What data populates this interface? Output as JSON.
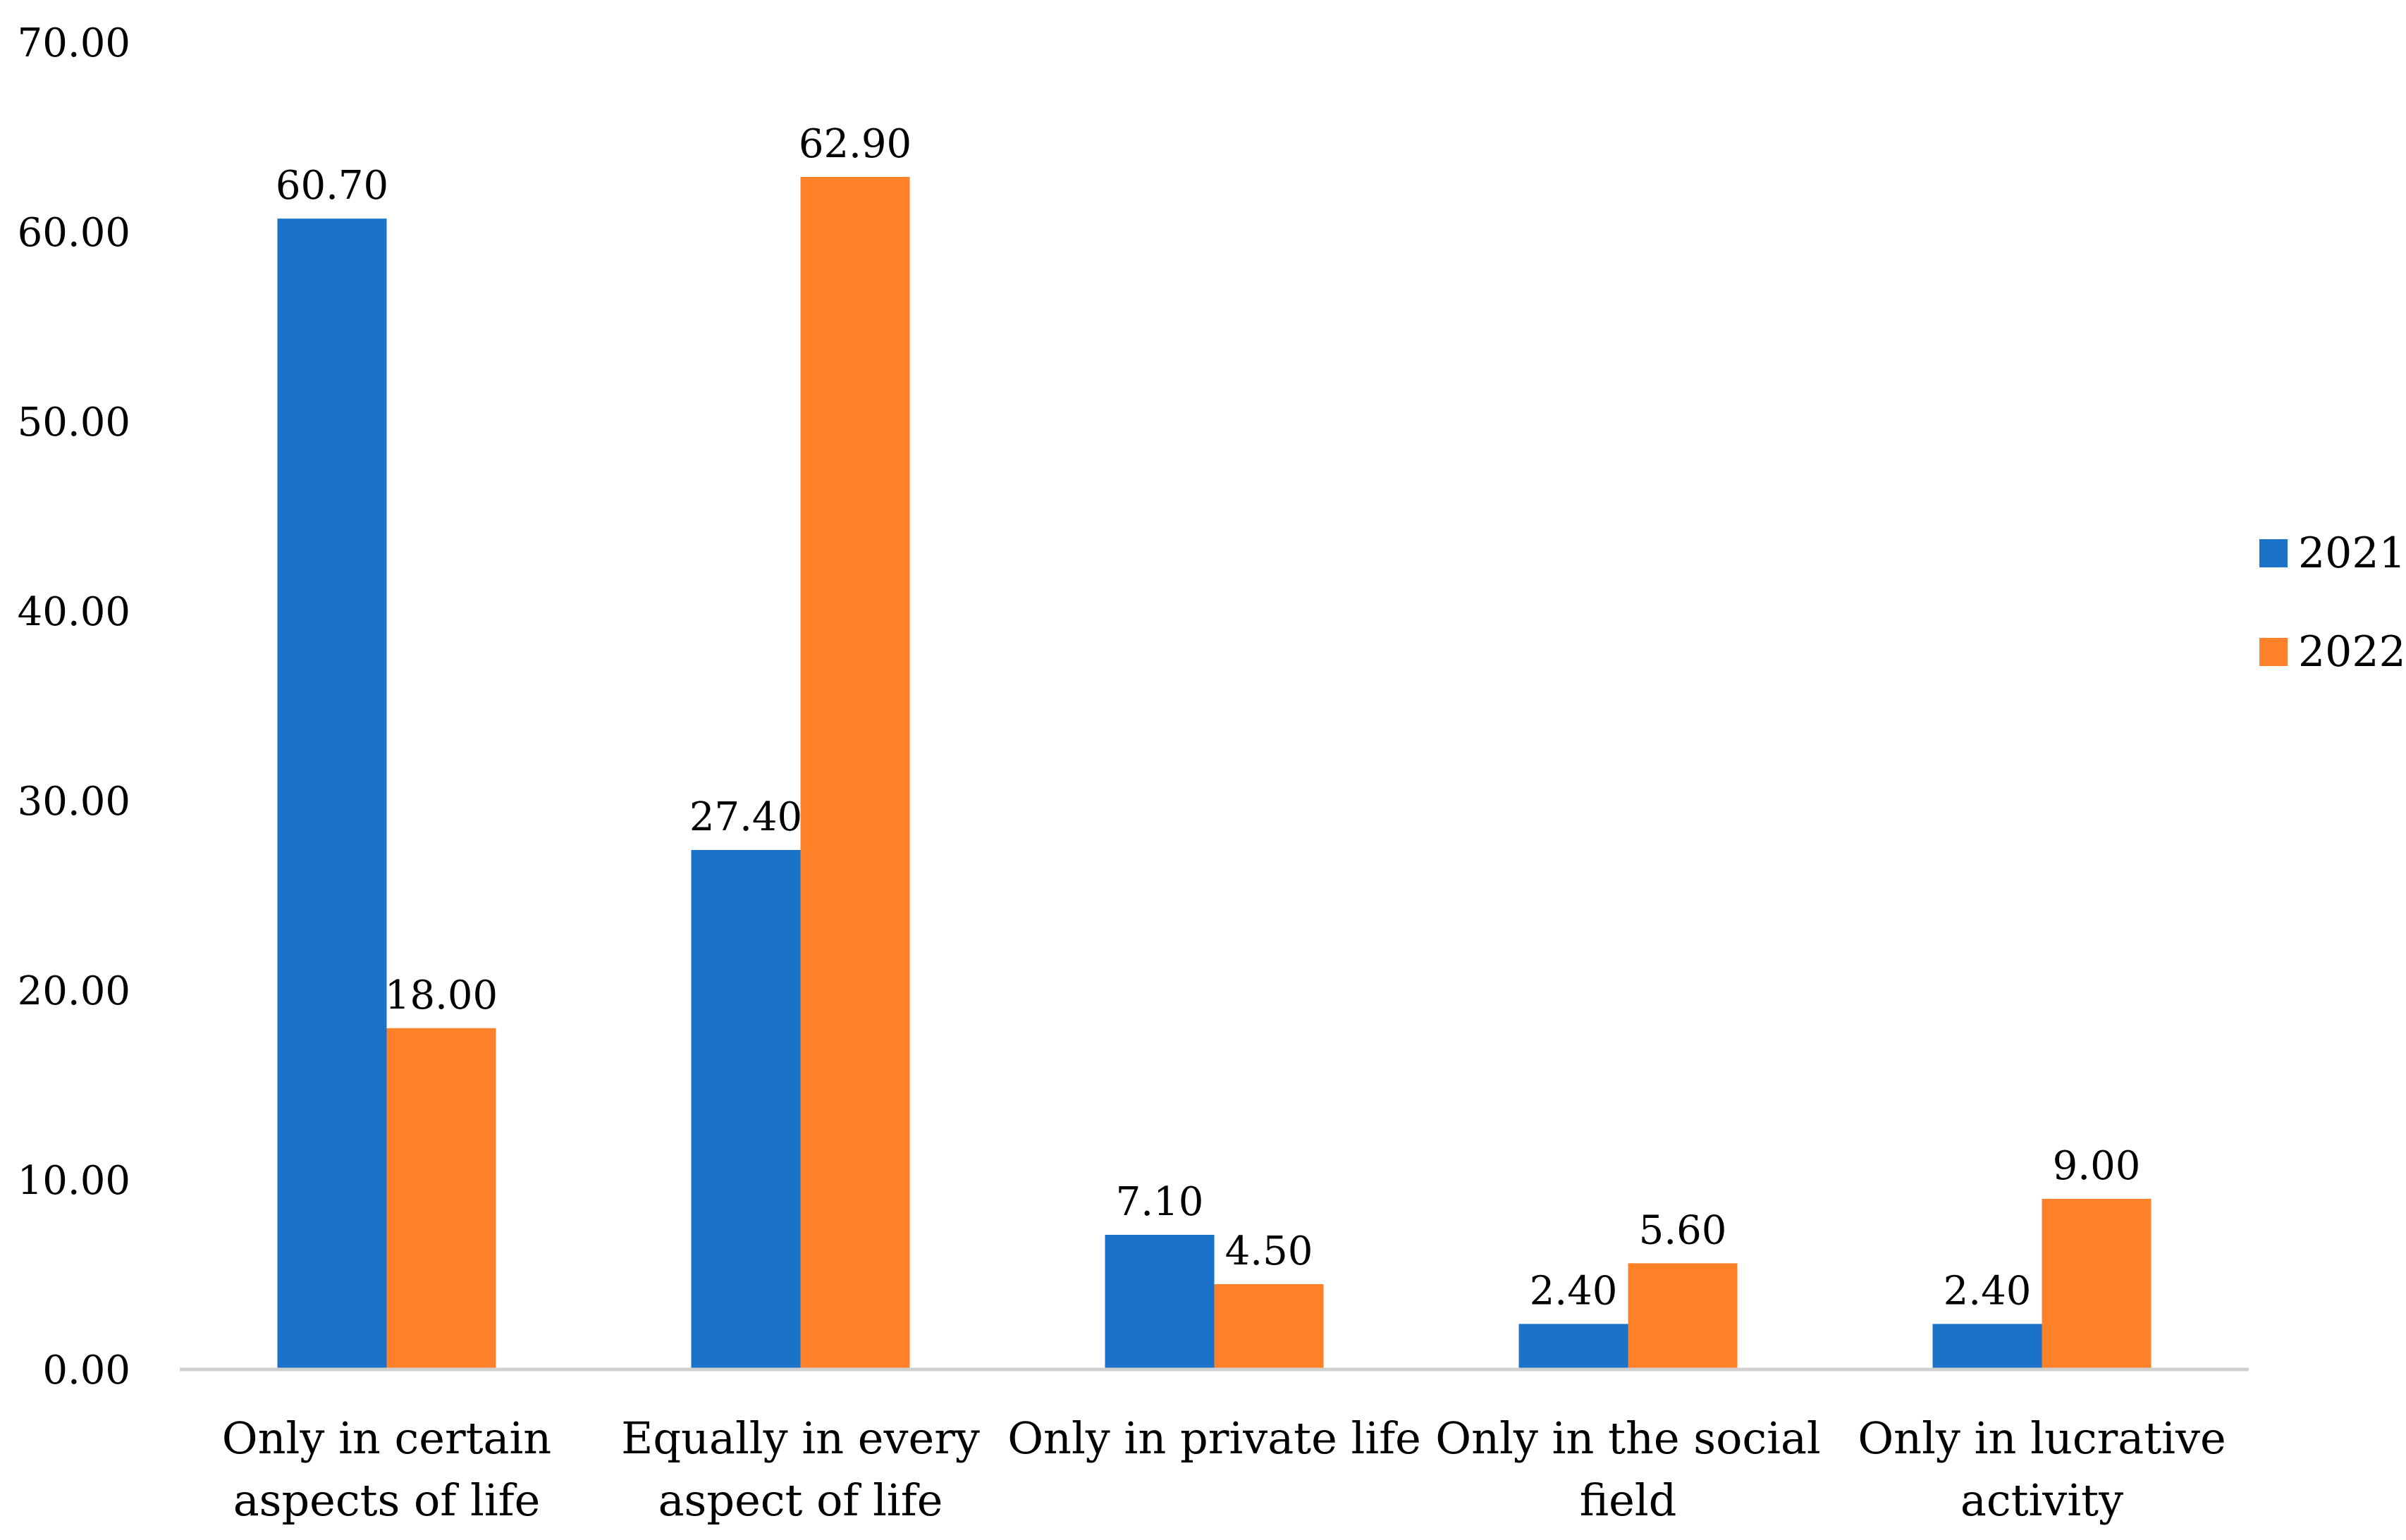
{
  "chart_data": {
    "type": "bar",
    "title": "",
    "xlabel": "",
    "ylabel": "",
    "ylim": [
      0,
      70
    ],
    "yticks": [
      0,
      10,
      20,
      30,
      40,
      50,
      60,
      70
    ],
    "ytick_labels": [
      "0.00",
      "10.00",
      "20.00",
      "30.00",
      "40.00",
      "50.00",
      "60.00",
      "70.00"
    ],
    "grid": false,
    "legend_position": "right",
    "categories": [
      [
        "Only in certain",
        "aspects of life"
      ],
      [
        "Equally in every",
        "aspect of life"
      ],
      [
        "Only in private life"
      ],
      [
        "Only in the social",
        "field"
      ],
      [
        "Only in lucrative",
        "activity"
      ]
    ],
    "series": [
      {
        "name": "2021",
        "color": "#1a73c8",
        "values": [
          60.7,
          27.4,
          7.1,
          2.4,
          2.4
        ],
        "labels": [
          "60.70",
          "27.40",
          "7.10",
          "2.40",
          "2.40"
        ]
      },
      {
        "name": "2022",
        "color": "#fe8129",
        "values": [
          18.0,
          62.9,
          4.5,
          5.6,
          9.0
        ],
        "labels": [
          "18.00",
          "62.90",
          "4.50",
          "5.60",
          "9.00"
        ]
      }
    ],
    "axis_color": "#d0d0d0"
  }
}
